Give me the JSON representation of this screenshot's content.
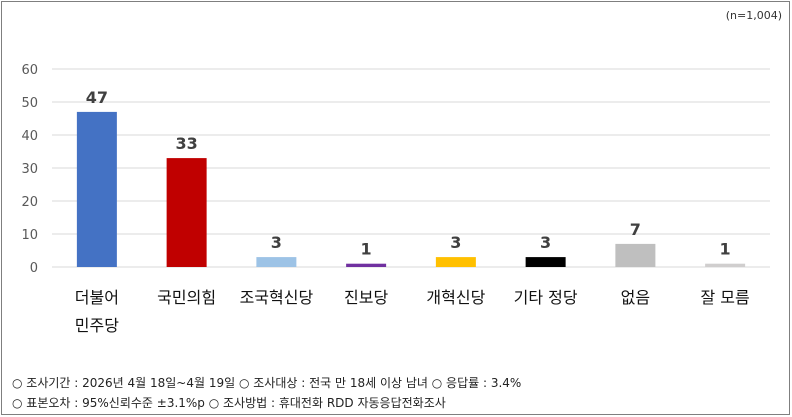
{
  "sample_size": "(n=1,004)",
  "chart_data": {
    "type": "bar",
    "categories": [
      [
        "더불어",
        "민주당"
      ],
      [
        "국민의힘"
      ],
      [
        "조국혁신당"
      ],
      [
        "진보당"
      ],
      [
        "개혁신당"
      ],
      [
        "기타 정당"
      ],
      [
        "없음"
      ],
      [
        "잘 모름"
      ]
    ],
    "values": [
      47,
      33,
      3,
      1,
      3,
      3,
      7,
      1
    ],
    "colors": [
      "#4472c4",
      "#c00000",
      "#9dc3e6",
      "#7030a0",
      "#ffc000",
      "#000000",
      "#bfbfbf",
      "#d0cece"
    ],
    "ylim": [
      0,
      60
    ],
    "yticks": [
      0,
      10,
      20,
      30,
      40,
      50,
      60
    ],
    "grid": true
  },
  "notes": [
    "○ 조사기간 : 2026년 4월 18일~4월 19일 ○ 조사대상 : 전국 만 18세 이상 남녀 ○ 응답률 : 3.4%",
    "○ 표본오차 : 95%신뢰수준 ±3.1%p ○ 조사방법 : 휴대전화 RDD 자동응답전화조사"
  ]
}
